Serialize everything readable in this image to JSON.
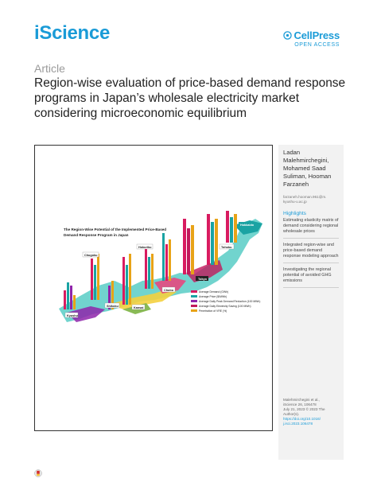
{
  "header": {
    "journal": "iScience",
    "publisher": "CellPress",
    "access": "OPEN ACCESS",
    "publisher_color": "#1a9bd7"
  },
  "article": {
    "type": "Article",
    "title": "Region-wise evaluation of price-based demand response programs in Japan’s wholesale electricity market considering microeconomic equilibrium"
  },
  "graphical_abstract": {
    "title_line1": "The Region-Wise Potential of the Implemented Price-Based",
    "title_line2": "Demand Response Program in Japan",
    "legend": [
      {
        "label": "Average Demand (GWh)",
        "color": "#d81b60"
      },
      {
        "label": "Average Price ($/MWh)",
        "color": "#1aa3a3"
      },
      {
        "label": "Average Daily Peak Demand Reduction (100 MWh)",
        "color": "#8e24aa"
      },
      {
        "label": "Average Daily Electricity Saving (100 MWh)",
        "color": "#c2185b"
      },
      {
        "label": "Penetration of VRE (%)",
        "color": "#e8a317"
      }
    ],
    "regions": [
      {
        "name": "Hokkaido"
      },
      {
        "name": "Tohoku"
      },
      {
        "name": "Tokyo"
      },
      {
        "name": "Chubu"
      },
      {
        "name": "Hokuriku"
      },
      {
        "name": "Kansai"
      },
      {
        "name": "Chugoku"
      },
      {
        "name": "Shikoku"
      },
      {
        "name": "Kyushu"
      }
    ]
  },
  "sidebar": {
    "authors": "Ladan Malehmirchegini, Mohamed Saad Suliman, Hooman Farzaneh",
    "email_line1": "farzaneh.hooman.961@m.",
    "email_line2": "kyushu-u.ac.jp",
    "highlights_heading": "Highlights",
    "highlights": [
      "Estimating elasticity matrix of demand considering regional wholesale prices",
      "Integrated region-wise and price-based demand response modeling approach",
      "Investigating the regional potential of avoided GHG emissions"
    ],
    "citation_line1": "Malehmirchegini et al.,",
    "citation_line2": "iScience 26, 106478",
    "citation_line3": "July 21, 2023 © 2023 The",
    "citation_line4": "Author(s).",
    "doi_line1": "https://doi.org/10.1016/",
    "doi_line2": "j.isci.2023.106478"
  }
}
